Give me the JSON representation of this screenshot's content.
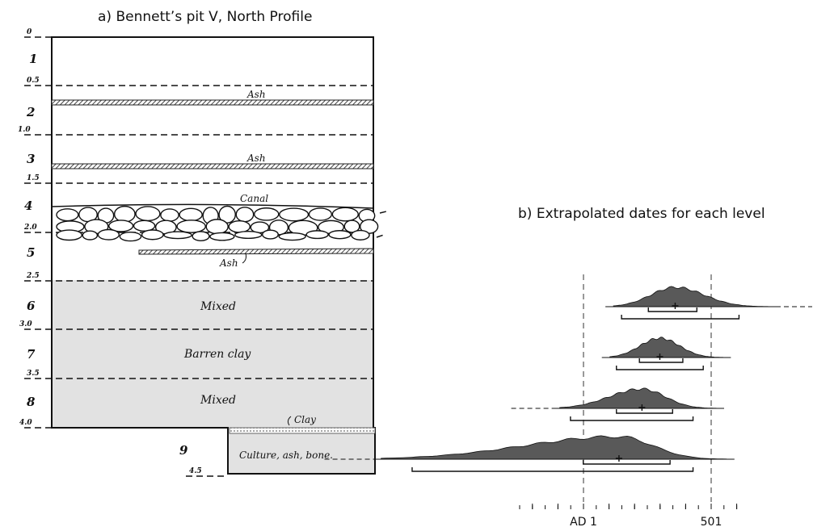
{
  "figure": {
    "title_a": "a) Bennett’s pit V, North Profile",
    "title_b": "b) Extrapolated dates for each level"
  },
  "profile": {
    "depth_marks": [
      "0",
      "0.5",
      "1.0",
      "1.5",
      "2.0",
      "2.5",
      "3.0",
      "3.5",
      "4.0",
      "4.5"
    ],
    "levels": [
      "1",
      "2",
      "3",
      "4",
      "5",
      "6",
      "7",
      "8",
      "9"
    ],
    "layer_labels": {
      "ash_1": "Ash",
      "ash_2": "Ash",
      "canal": "Canal",
      "ash_3": "Ash",
      "mixed_1": "Mixed",
      "barren_clay": "Barren clay",
      "mixed_2": "Mixed",
      "clay": "Clay",
      "culture": "Culture, ash, bone."
    },
    "fill_color": "#e2e2e2",
    "ash_band_color": "#555555"
  },
  "chart_data": {
    "type": "density",
    "title": "b) Extrapolated dates for each level",
    "x_axis_labels": [
      "AD 1",
      "501"
    ],
    "reference_lines": [
      "AD 1",
      "501"
    ],
    "series": [
      {
        "level": "6",
        "peak": 360,
        "inner_range": [
          255,
          445
        ],
        "outer_range": [
          150,
          610
        ]
      },
      {
        "level": "7",
        "peak": 300,
        "inner_range": [
          220,
          390
        ],
        "outer_range": [
          130,
          470
        ]
      },
      {
        "level": "8",
        "peak": 230,
        "inner_range": [
          130,
          350
        ],
        "outer_range": [
          -50,
          430
        ]
      },
      {
        "level": "9",
        "peak": 140,
        "inner_range": [
          0,
          340
        ],
        "outer_range": [
          -670,
          430
        ]
      }
    ],
    "fill_color": "#595959"
  }
}
